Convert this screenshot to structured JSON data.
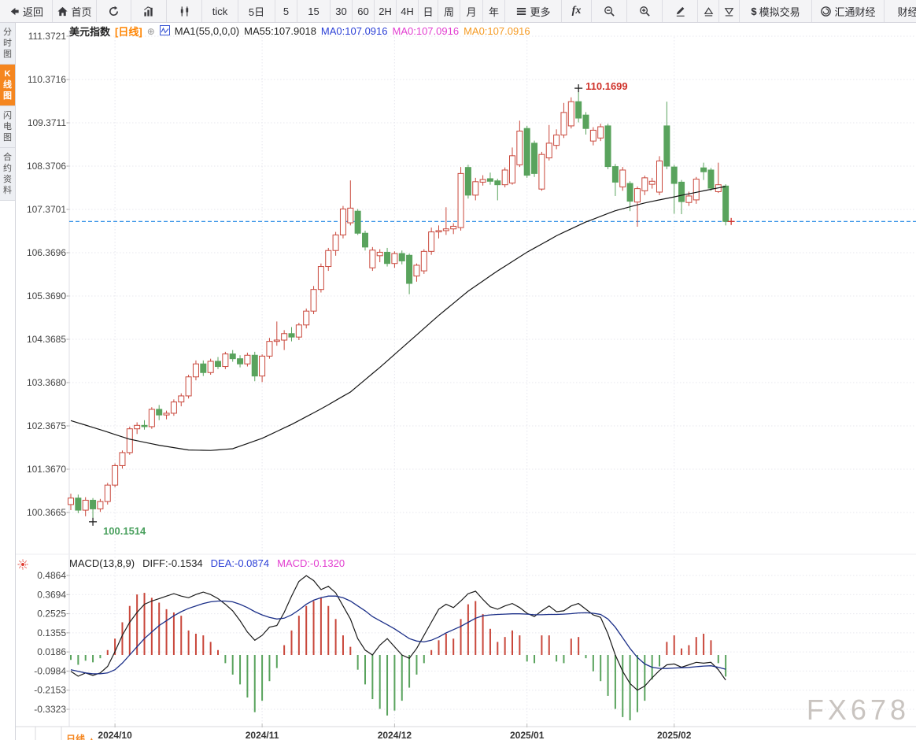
{
  "toolbar": {
    "items": [
      {
        "id": "back",
        "icon": "back-arrow-icon",
        "label": "返回"
      },
      {
        "id": "home",
        "icon": "house-icon",
        "label": "首页"
      },
      {
        "id": "refresh",
        "icon": "refresh-icon",
        "label": ""
      },
      {
        "id": "chart-type-bar",
        "icon": "bar-chart-icon",
        "label": ""
      },
      {
        "id": "chart-type-candle",
        "icon": "candles-icon",
        "label": ""
      },
      {
        "id": "tick",
        "label": "tick"
      },
      {
        "id": "period-5d",
        "label": "5日"
      },
      {
        "id": "period-5",
        "label": "5"
      },
      {
        "id": "period-15",
        "label": "15"
      },
      {
        "id": "period-30",
        "label": "30"
      },
      {
        "id": "period-60",
        "label": "60"
      },
      {
        "id": "period-2h",
        "label": "2H"
      },
      {
        "id": "period-4h",
        "label": "4H"
      },
      {
        "id": "period-day",
        "label": "日"
      },
      {
        "id": "period-week",
        "label": "周"
      },
      {
        "id": "period-month",
        "label": "月"
      },
      {
        "id": "period-year",
        "label": "年"
      },
      {
        "id": "more",
        "icon": "menu-icon",
        "label": "更多"
      },
      {
        "id": "fx",
        "label": "fx",
        "fx": true
      },
      {
        "id": "zoom-out",
        "icon": "zoom-out-icon",
        "label": ""
      },
      {
        "id": "zoom-in",
        "icon": "zoom-in-icon",
        "label": ""
      },
      {
        "id": "draw",
        "icon": "pencil-icon",
        "label": ""
      },
      {
        "id": "tri-up",
        "icon": "triangle-up-icon",
        "label": ""
      },
      {
        "id": "tri-down",
        "icon": "triangle-down-icon",
        "label": ""
      },
      {
        "id": "sim-trade",
        "dollar": "$",
        "label": "模拟交易"
      },
      {
        "id": "huitong",
        "icon": "huitong-logo-icon",
        "label": "汇通财经"
      },
      {
        "id": "calendar",
        "label": "财经"
      }
    ]
  },
  "sidebar": {
    "tabs": [
      {
        "id": "time-share",
        "label": "分时图",
        "active": false
      },
      {
        "id": "kline",
        "label": "K线图",
        "active": true
      },
      {
        "id": "lightning",
        "label": "闪电图",
        "active": false
      },
      {
        "id": "contract-info",
        "label": "合约资料",
        "active": false
      }
    ]
  },
  "header": {
    "symbol": "美元指数",
    "period": "[日线]",
    "plus": "⊕",
    "ma_setting": "MA1(55,0,0,0)",
    "ma55": "MA55:107.9018",
    "ma0_blue": "MA0:107.0916",
    "ma0_magenta": "MA0:107.0916",
    "ma0_orange": "MA0:107.0916"
  },
  "macd_header": {
    "name": "MACD(13,8,9)",
    "diff": "DIFF:-0.1534",
    "dea": "DEA:-0.0874",
    "macd": "MACD:-0.1320"
  },
  "watermark": "FX678",
  "bottom_tab": {
    "label": "日线",
    "arrow": "▲"
  },
  "colors": {
    "up": "#c9473b",
    "down": "#59a35d",
    "ma55_line": "#141414",
    "price_dashed_line": "#1e86e5",
    "diff_line": "#1a1a1a",
    "dea_line": "#1b2f88",
    "high_label": "#d0342c",
    "low_label": "#4aa05e",
    "ma0_blue": "#2b3fd6",
    "ma0_magenta": "#e23ed0",
    "ma0_orange": "#f59a23",
    "accent_orange": "#f5861f",
    "grid": "#e7e7ee",
    "axis_text": "#444444"
  },
  "chart_data": {
    "type": "candlestick",
    "symbol": "美元指数",
    "interval": "日线",
    "y_ticks": [
      111.3721,
      110.3716,
      109.3711,
      108.3706,
      107.3701,
      106.3696,
      105.369,
      104.3685,
      103.368,
      102.3675,
      101.367,
      100.3665
    ],
    "macd_ticks": [
      0.4864,
      0.3694,
      0.2525,
      0.1355,
      0.0186,
      -0.0984,
      -0.2153,
      -0.3323
    ],
    "x_ticks": [
      {
        "label": "2024/10",
        "index": 6
      },
      {
        "label": "2024/11",
        "index": 26
      },
      {
        "label": "2024/12",
        "index": 44
      },
      {
        "label": "2025/01",
        "index": 62
      },
      {
        "label": "2025/02",
        "index": 82
      }
    ],
    "price_line": 107.0916,
    "markers": {
      "high": {
        "index": 69,
        "value": 110.1699,
        "label": "110.1699"
      },
      "low": {
        "index": 3,
        "value": 100.1514,
        "label": "100.1514"
      },
      "last": {
        "value": 107.0916
      }
    },
    "candles": [
      [
        100.55,
        100.8,
        100.42,
        100.7
      ],
      [
        100.7,
        100.78,
        100.35,
        100.42
      ],
      [
        100.42,
        100.72,
        100.28,
        100.65
      ],
      [
        100.65,
        100.7,
        100.15,
        100.45
      ],
      [
        100.45,
        100.68,
        100.38,
        100.62
      ],
      [
        100.62,
        101.05,
        100.55,
        101.0
      ],
      [
        101.0,
        101.5,
        100.95,
        101.45
      ],
      [
        101.45,
        101.8,
        101.38,
        101.75
      ],
      [
        101.75,
        102.35,
        101.7,
        102.3
      ],
      [
        102.3,
        102.45,
        102.18,
        102.38
      ],
      [
        102.38,
        102.5,
        102.28,
        102.35
      ],
      [
        102.35,
        102.8,
        102.3,
        102.75
      ],
      [
        102.75,
        102.85,
        102.5,
        102.62
      ],
      [
        102.62,
        102.72,
        102.52,
        102.66
      ],
      [
        102.66,
        102.98,
        102.6,
        102.92
      ],
      [
        102.92,
        103.12,
        102.82,
        103.06
      ],
      [
        103.06,
        103.55,
        103.0,
        103.5
      ],
      [
        103.5,
        103.88,
        103.42,
        103.8
      ],
      [
        103.8,
        103.88,
        103.52,
        103.6
      ],
      [
        103.6,
        103.92,
        103.55,
        103.86
      ],
      [
        103.86,
        103.96,
        103.68,
        103.74
      ],
      [
        103.74,
        104.08,
        103.68,
        104.03
      ],
      [
        104.03,
        104.12,
        103.85,
        103.92
      ],
      [
        103.92,
        104.0,
        103.72,
        103.8
      ],
      [
        103.8,
        104.06,
        103.74,
        104.0
      ],
      [
        104.0,
        104.08,
        103.4,
        103.52
      ],
      [
        103.52,
        104.02,
        103.38,
        103.98
      ],
      [
        103.98,
        104.4,
        103.92,
        104.32
      ],
      [
        104.32,
        104.78,
        104.22,
        104.35
      ],
      [
        104.35,
        104.58,
        104.12,
        104.5
      ],
      [
        104.5,
        104.65,
        104.32,
        104.42
      ],
      [
        104.42,
        104.75,
        104.35,
        104.7
      ],
      [
        104.7,
        105.08,
        104.62,
        105.02
      ],
      [
        105.02,
        105.6,
        104.95,
        105.52
      ],
      [
        105.52,
        106.12,
        105.45,
        106.05
      ],
      [
        106.05,
        106.48,
        105.95,
        106.42
      ],
      [
        106.42,
        106.85,
        106.3,
        106.78
      ],
      [
        106.78,
        107.45,
        106.7,
        107.38
      ],
      [
        107.06,
        108.04,
        107.0,
        107.4
      ],
      [
        107.33,
        107.38,
        106.78,
        106.82
      ],
      [
        106.82,
        106.88,
        106.42,
        106.5
      ],
      [
        106.02,
        106.5,
        105.95,
        106.43
      ],
      [
        106.3,
        106.45,
        106.15,
        106.38
      ],
      [
        106.38,
        106.48,
        106.05,
        106.12
      ],
      [
        106.12,
        106.4,
        106.02,
        106.35
      ],
      [
        106.35,
        106.42,
        106.1,
        106.18
      ],
      [
        106.31,
        106.35,
        105.41,
        105.66
      ],
      [
        105.83,
        106.12,
        105.7,
        106.08
      ],
      [
        105.95,
        106.45,
        105.88,
        106.4
      ],
      [
        106.4,
        106.95,
        106.32,
        106.85
      ],
      [
        106.85,
        107.0,
        106.7,
        106.88
      ],
      [
        106.88,
        107.42,
        106.78,
        106.92
      ],
      [
        106.92,
        107.05,
        106.8,
        106.98
      ],
      [
        106.95,
        108.35,
        106.88,
        108.2
      ],
      [
        108.34,
        108.4,
        107.62,
        107.7
      ],
      [
        107.7,
        108.1,
        107.58,
        108.01
      ],
      [
        108.0,
        108.16,
        107.92,
        108.06
      ],
      [
        108.08,
        108.22,
        107.94,
        108.02
      ],
      [
        108.03,
        108.08,
        107.58,
        107.94
      ],
      [
        107.94,
        108.34,
        107.88,
        108.28
      ],
      [
        107.98,
        108.8,
        107.94,
        108.61
      ],
      [
        108.4,
        109.42,
        108.35,
        109.18
      ],
      [
        109.24,
        109.3,
        108.1,
        108.16
      ],
      [
        108.9,
        108.96,
        108.12,
        108.2
      ],
      [
        107.84,
        108.7,
        107.8,
        108.64
      ],
      [
        108.56,
        109.32,
        108.5,
        108.9
      ],
      [
        108.85,
        109.22,
        108.76,
        109.09
      ],
      [
        109.09,
        109.83,
        109.02,
        109.61
      ],
      [
        109.3,
        109.96,
        109.24,
        109.86
      ],
      [
        109.86,
        110.1699,
        109.38,
        109.48
      ],
      [
        109.55,
        109.62,
        109.1,
        109.24
      ],
      [
        108.95,
        109.27,
        108.85,
        109.2
      ],
      [
        109.02,
        109.35,
        108.95,
        109.28
      ],
      [
        109.3,
        109.35,
        108.3,
        108.36
      ],
      [
        108.36,
        108.42,
        107.68,
        108.0
      ],
      [
        107.89,
        108.35,
        107.8,
        108.28
      ],
      [
        107.97,
        108.02,
        107.33,
        107.56
      ],
      [
        107.54,
        107.9,
        106.97,
        107.85
      ],
      [
        107.8,
        108.15,
        107.7,
        108.1
      ],
      [
        107.95,
        108.1,
        107.85,
        108.02
      ],
      [
        107.77,
        108.6,
        107.7,
        108.49
      ],
      [
        109.3,
        109.86,
        108.3,
        108.37
      ],
      [
        108.35,
        108.4,
        107.27,
        107.97
      ],
      [
        108.0,
        108.05,
        107.26,
        107.55
      ],
      [
        107.53,
        107.78,
        107.45,
        107.68
      ],
      [
        107.59,
        108.12,
        107.5,
        108.07
      ],
      [
        108.33,
        108.45,
        108.05,
        108.24
      ],
      [
        108.28,
        108.33,
        107.8,
        107.86
      ],
      [
        107.78,
        108.45,
        107.75,
        107.94
      ],
      [
        107.91,
        107.95,
        107.0,
        107.0916
      ]
    ],
    "ma55_points": [
      [
        0,
        102.49
      ],
      [
        4,
        102.28
      ],
      [
        8,
        102.06
      ],
      [
        12,
        101.92
      ],
      [
        16,
        101.81
      ],
      [
        19,
        101.8
      ],
      [
        22,
        101.84
      ],
      [
        26,
        102.08
      ],
      [
        30,
        102.4
      ],
      [
        34,
        102.76
      ],
      [
        38,
        103.15
      ],
      [
        42,
        103.72
      ],
      [
        46,
        104.32
      ],
      [
        50,
        104.92
      ],
      [
        54,
        105.48
      ],
      [
        58,
        105.95
      ],
      [
        62,
        106.38
      ],
      [
        66,
        106.76
      ],
      [
        70,
        107.08
      ],
      [
        74,
        107.34
      ],
      [
        78,
        107.52
      ],
      [
        82,
        107.66
      ],
      [
        86,
        107.8
      ],
      [
        89,
        107.9
      ]
    ],
    "macd": {
      "hist": [
        -0.03,
        -0.06,
        -0.035,
        -0.045,
        -0.02,
        0.03,
        0.1,
        0.2,
        0.3,
        0.37,
        0.38,
        0.35,
        0.32,
        0.28,
        0.26,
        0.24,
        0.15,
        0.13,
        0.12,
        0.08,
        0.03,
        -0.05,
        -0.12,
        -0.18,
        -0.26,
        -0.35,
        -0.28,
        -0.16,
        -0.08,
        0.06,
        0.15,
        0.24,
        0.3,
        0.33,
        0.35,
        0.3,
        0.22,
        0.12,
        0.05,
        -0.09,
        -0.18,
        -0.27,
        -0.33,
        -0.37,
        -0.34,
        -0.28,
        -0.2,
        -0.12,
        -0.05,
        0.03,
        0.09,
        0.13,
        0.1,
        0.22,
        0.31,
        0.33,
        0.25,
        0.16,
        0.08,
        0.11,
        0.15,
        0.12,
        -0.04,
        -0.05,
        0.12,
        0.12,
        -0.04,
        -0.05,
        0.1,
        0.11,
        -0.02,
        -0.1,
        -0.16,
        -0.25,
        -0.33,
        -0.38,
        -0.4,
        -0.35,
        -0.28,
        -0.15,
        -0.07,
        0.08,
        0.12,
        0.04,
        0.06,
        0.11,
        0.13,
        0.09,
        -0.05,
        -0.132
      ],
      "diff": [
        -0.1,
        -0.13,
        -0.11,
        -0.125,
        -0.11,
        -0.07,
        0.02,
        0.12,
        0.2,
        0.26,
        0.31,
        0.33,
        0.345,
        0.36,
        0.375,
        0.36,
        0.35,
        0.37,
        0.385,
        0.37,
        0.345,
        0.31,
        0.27,
        0.21,
        0.14,
        0.09,
        0.12,
        0.17,
        0.18,
        0.26,
        0.36,
        0.45,
        0.485,
        0.455,
        0.4,
        0.42,
        0.38,
        0.3,
        0.22,
        0.1,
        0.03,
        0,
        0.06,
        0.1,
        0.05,
        0,
        -0.02,
        0.04,
        0.12,
        0.2,
        0.28,
        0.31,
        0.29,
        0.33,
        0.375,
        0.39,
        0.34,
        0.295,
        0.28,
        0.3,
        0.315,
        0.29,
        0.255,
        0.235,
        0.27,
        0.3,
        0.265,
        0.27,
        0.3,
        0.315,
        0.28,
        0.245,
        0.23,
        0.13,
        0,
        -0.1,
        -0.175,
        -0.215,
        -0.19,
        -0.14,
        -0.095,
        -0.06,
        -0.055,
        -0.075,
        -0.06,
        -0.045,
        -0.05,
        -0.045,
        -0.09,
        -0.1534
      ],
      "dea": [
        -0.09,
        -0.1,
        -0.11,
        -0.115,
        -0.115,
        -0.11,
        -0.09,
        -0.05,
        0,
        0.05,
        0.1,
        0.14,
        0.18,
        0.21,
        0.24,
        0.265,
        0.285,
        0.3,
        0.315,
        0.325,
        0.33,
        0.33,
        0.325,
        0.31,
        0.29,
        0.265,
        0.245,
        0.23,
        0.22,
        0.225,
        0.245,
        0.275,
        0.31,
        0.335,
        0.35,
        0.36,
        0.36,
        0.35,
        0.33,
        0.3,
        0.27,
        0.235,
        0.21,
        0.185,
        0.16,
        0.13,
        0.1,
        0.085,
        0.08,
        0.09,
        0.11,
        0.135,
        0.155,
        0.175,
        0.2,
        0.225,
        0.24,
        0.245,
        0.248,
        0.25,
        0.252,
        0.252,
        0.25,
        0.246,
        0.246,
        0.248,
        0.248,
        0.25,
        0.253,
        0.257,
        0.258,
        0.255,
        0.248,
        0.22,
        0.17,
        0.105,
        0.04,
        -0.015,
        -0.055,
        -0.075,
        -0.082,
        -0.083,
        -0.08,
        -0.078,
        -0.076,
        -0.072,
        -0.068,
        -0.066,
        -0.075,
        -0.0874
      ]
    }
  }
}
